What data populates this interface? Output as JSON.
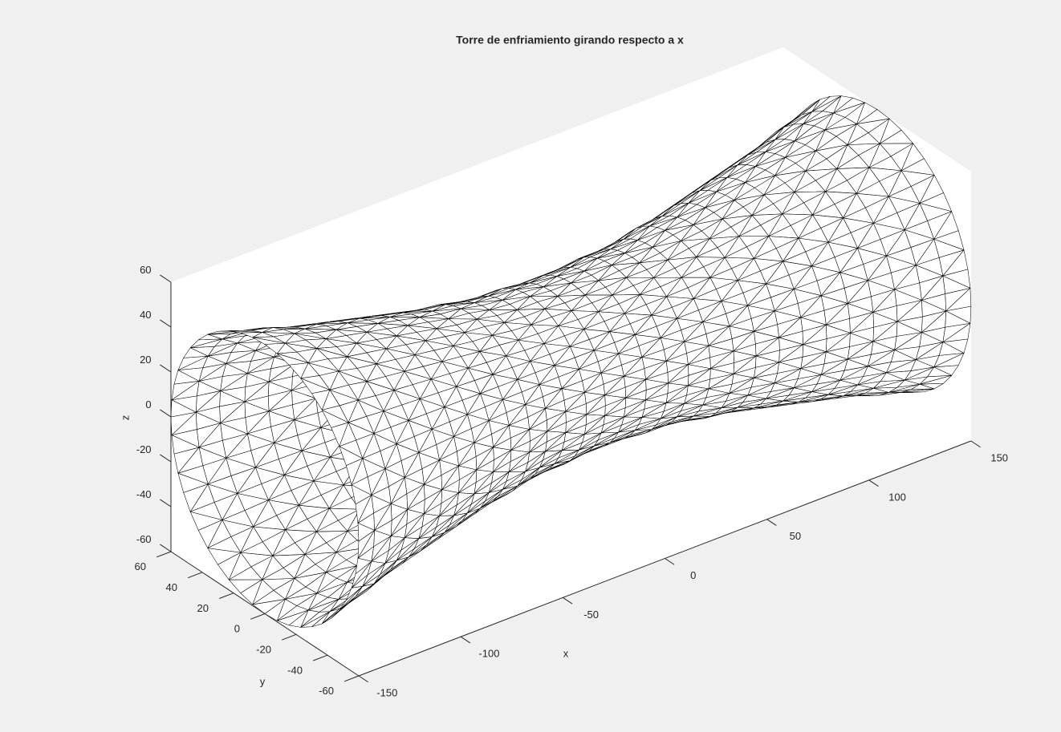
{
  "chart_data": {
    "type": "surface",
    "title": "Torre de enfriamiento girando respecto a x",
    "xlabel": "x",
    "ylabel": "y",
    "zlabel": "z",
    "x": [
      -150,
      -140,
      -130,
      -120,
      -110,
      -100,
      -90,
      -80,
      -70,
      -60,
      -50,
      -40,
      -30,
      -20,
      -10,
      0,
      10,
      20,
      30,
      40,
      50,
      60,
      70,
      80,
      90,
      100,
      110,
      120,
      130,
      140,
      150
    ],
    "values": [
      60,
      57,
      55,
      52,
      50,
      48,
      46,
      44,
      42,
      40,
      39,
      37,
      36,
      36,
      35,
      35,
      35,
      36,
      36,
      37,
      39,
      40,
      42,
      44,
      46,
      48,
      50,
      52,
      55,
      57,
      60
    ],
    "color": "#000000",
    "face_color": "#ffffff",
    "xlim": [
      -150,
      150
    ],
    "ylim": [
      -60,
      60
    ],
    "zlim": [
      -60,
      60
    ],
    "xticks": [
      -150,
      -100,
      -50,
      0,
      50,
      100,
      150
    ],
    "yticks": [
      -60,
      -40,
      -20,
      0,
      20,
      40,
      60
    ],
    "zticks": [
      -60,
      -40,
      -20,
      0,
      20,
      40,
      60
    ]
  }
}
